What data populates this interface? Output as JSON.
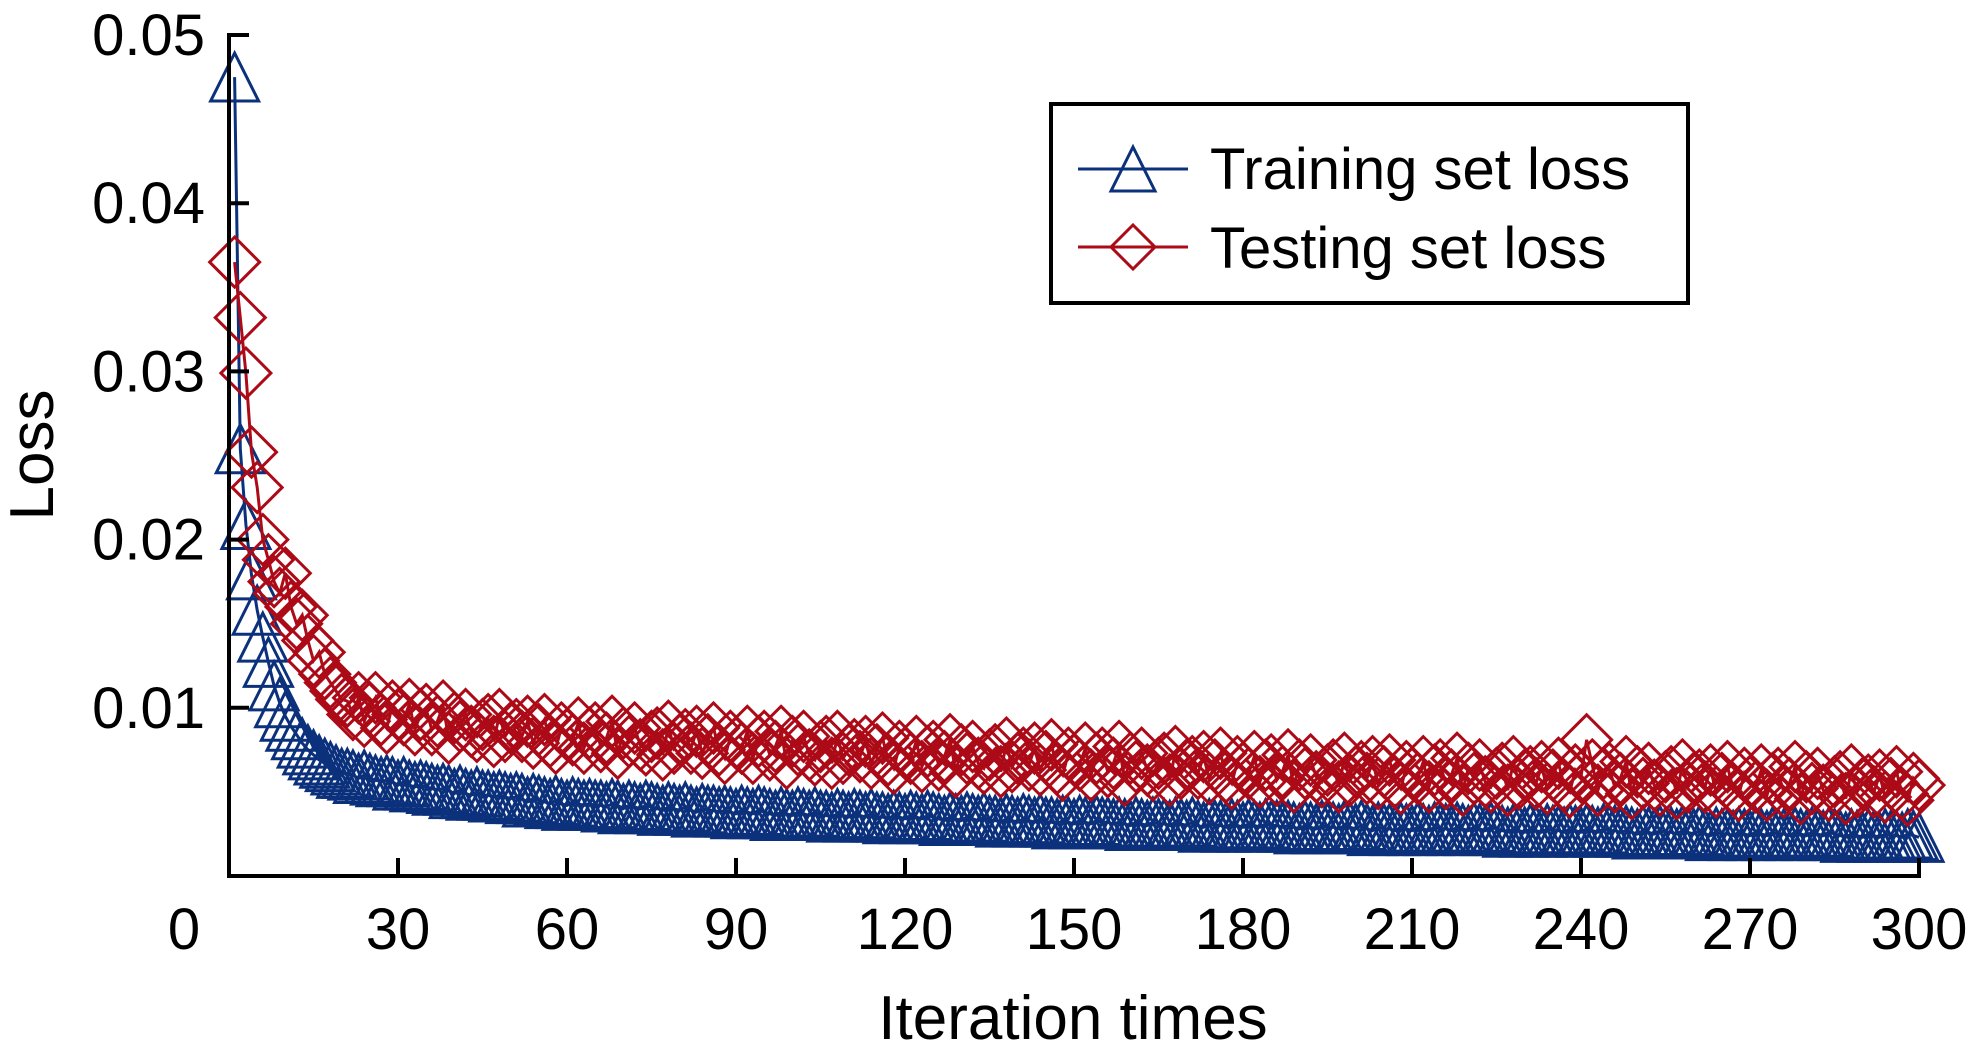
{
  "chart_data": {
    "type": "line",
    "title": "",
    "xlabel": "Iteration times",
    "ylabel": "Loss",
    "xlim": [
      0,
      300
    ],
    "ylim": [
      0,
      0.05
    ],
    "grid": false,
    "legend_position": "top-right",
    "x_ticks": [
      0,
      30,
      60,
      90,
      120,
      150,
      180,
      210,
      240,
      270,
      300
    ],
    "x_tick_labels": [
      "0",
      "30",
      "60",
      "90",
      "120",
      "150",
      "180",
      "210",
      "240",
      "270",
      "300"
    ],
    "y_ticks": [
      0.01,
      0.02,
      0.03,
      0.04,
      0.05
    ],
    "y_tick_labels": [
      "0.01",
      "0.02",
      "0.03",
      "0.04",
      "0.05"
    ],
    "x_start": 1,
    "x_step": 1,
    "series": [
      {
        "name": "Training set loss",
        "color": "#0c317c",
        "marker": "triangle",
        "values": [
          0.0475,
          0.0254,
          0.0209,
          0.0179,
          0.0158,
          0.0142,
          0.0127,
          0.0113,
          0.0103,
          0.0095,
          0.0089,
          0.0084,
          0.0079,
          0.0075,
          0.0072,
          0.0069,
          0.0067,
          0.0065,
          0.0063,
          0.0061,
          0.0061,
          0.006,
          0.0058,
          0.006,
          0.0058,
          0.0057,
          0.0056,
          0.0057,
          0.0056,
          0.0054,
          0.0056,
          0.0054,
          0.0053,
          0.0054,
          0.0053,
          0.0052,
          0.0051,
          0.0052,
          0.0051,
          0.0049,
          0.0051,
          0.0049,
          0.0048,
          0.005,
          0.0048,
          0.0048,
          0.0047,
          0.0048,
          0.0047,
          0.0046,
          0.0047,
          0.0046,
          0.0044,
          0.0046,
          0.0045,
          0.0044,
          0.0043,
          0.0045,
          0.0043,
          0.0042,
          0.0044,
          0.0043,
          0.0042,
          0.0043,
          0.0042,
          0.0042,
          0.0041,
          0.0043,
          0.0042,
          0.004,
          0.0042,
          0.0041,
          0.004,
          0.0042,
          0.0041,
          0.004,
          0.0039,
          0.0041,
          0.004,
          0.0039,
          0.0041,
          0.0039,
          0.0038,
          0.004,
          0.0039,
          0.0039,
          0.0038,
          0.0039,
          0.0038,
          0.0037,
          0.0039,
          0.0038,
          0.0037,
          0.0039,
          0.0038,
          0.0037,
          0.0036,
          0.0038,
          0.0037,
          0.0036,
          0.0038,
          0.0037,
          0.0036,
          0.0038,
          0.0036,
          0.0036,
          0.0035,
          0.0037,
          0.0036,
          0.0035,
          0.0037,
          0.0036,
          0.0035,
          0.0037,
          0.0035,
          0.0035,
          0.0034,
          0.0036,
          0.0035,
          0.0034,
          0.0036,
          0.0035,
          0.0034,
          0.0036,
          0.0035,
          0.0034,
          0.0033,
          0.0035,
          0.0034,
          0.0033,
          0.0035,
          0.0034,
          0.0033,
          0.0035,
          0.0033,
          0.0033,
          0.0032,
          0.0034,
          0.0033,
          0.0032,
          0.0034,
          0.0033,
          0.0032,
          0.0034,
          0.0032,
          0.0032,
          0.0031,
          0.0033,
          0.0032,
          0.0031,
          0.0033,
          0.0032,
          0.0031,
          0.0033,
          0.0032,
          0.0032,
          0.0031,
          0.0032,
          0.0031,
          0.003,
          0.0032,
          0.0031,
          0.003,
          0.0032,
          0.0031,
          0.0031,
          0.003,
          0.0032,
          0.0031,
          0.003,
          0.0032,
          0.003,
          0.0029,
          0.0031,
          0.003,
          0.003,
          0.0029,
          0.0031,
          0.003,
          0.0029,
          0.0031,
          0.003,
          0.0029,
          0.0031,
          0.003,
          0.003,
          0.0029,
          0.003,
          0.0029,
          0.0028,
          0.003,
          0.0029,
          0.0028,
          0.003,
          0.0029,
          0.0029,
          0.0028,
          0.003,
          0.0029,
          0.0028,
          0.003,
          0.0028,
          0.0027,
          0.0029,
          0.0028,
          0.0028,
          0.0027,
          0.0029,
          0.0028,
          0.0027,
          0.0029,
          0.0028,
          0.0027,
          0.0029,
          0.0028,
          0.0028,
          0.0027,
          0.0029,
          0.0028,
          0.0027,
          0.0029,
          0.0028,
          0.0027,
          0.0029,
          0.0028,
          0.0027,
          0.0026,
          0.0028,
          0.0027,
          0.0026,
          0.0028,
          0.0027,
          0.0026,
          0.0028,
          0.0027,
          0.0027,
          0.0026,
          0.0028,
          0.0027,
          0.0026,
          0.0028,
          0.0027,
          0.0026,
          0.0028,
          0.0027,
          0.0027,
          0.0026,
          0.0027,
          0.0026,
          0.0025,
          0.0027,
          0.0026,
          0.0025,
          0.0027,
          0.0026,
          0.0026,
          0.0025,
          0.0027,
          0.0026,
          0.0025,
          0.0027,
          0.0025,
          0.0024,
          0.0026,
          0.0025,
          0.0025,
          0.0024,
          0.0026,
          0.0025,
          0.0024,
          0.0026,
          0.0025,
          0.0024,
          0.0026,
          0.0025,
          0.0025,
          0.0024,
          0.0026,
          0.0025,
          0.0024,
          0.0026,
          0.0025,
          0.0024,
          0.0026,
          0.0025,
          0.0024,
          0.0023,
          0.0025,
          0.0024,
          0.0023,
          0.0025,
          0.0024,
          0.0023,
          0.0025,
          0.0024,
          0.0024,
          0.0023,
          0.0025,
          0.0024,
          0.0023
        ]
      },
      {
        "name": "Testing set loss",
        "color": "#ad0a18",
        "marker": "diamond",
        "values": [
          0.0365,
          0.0332,
          0.0299,
          0.0252,
          0.0231,
          0.02,
          0.0188,
          0.0175,
          0.0168,
          0.018,
          0.016,
          0.015,
          0.0155,
          0.014,
          0.0128,
          0.0133,
          0.012,
          0.0115,
          0.011,
          0.0105,
          0.0104,
          0.0096,
          0.0106,
          0.0092,
          0.01,
          0.0106,
          0.0093,
          0.0088,
          0.0101,
          0.0096,
          0.0093,
          0.0102,
          0.0087,
          0.0096,
          0.0099,
          0.0087,
          0.0092,
          0.0101,
          0.0082,
          0.0094,
          0.0089,
          0.0096,
          0.0086,
          0.0083,
          0.009,
          0.0093,
          0.008,
          0.0096,
          0.0083,
          0.0088,
          0.009,
          0.0083,
          0.0092,
          0.0079,
          0.0087,
          0.0093,
          0.008,
          0.0076,
          0.0088,
          0.0084,
          0.0081,
          0.0091,
          0.0076,
          0.0085,
          0.0088,
          0.0077,
          0.0082,
          0.0092,
          0.0073,
          0.0085,
          0.008,
          0.0088,
          0.0078,
          0.0075,
          0.0083,
          0.0085,
          0.0072,
          0.0089,
          0.0076,
          0.0081,
          0.0084,
          0.0076,
          0.0086,
          0.0073,
          0.0081,
          0.0088,
          0.0075,
          0.007,
          0.0083,
          0.0079,
          0.0076,
          0.0086,
          0.007,
          0.008,
          0.0083,
          0.0072,
          0.0077,
          0.0086,
          0.0067,
          0.008,
          0.0075,
          0.0083,
          0.0072,
          0.0069,
          0.0077,
          0.008,
          0.0067,
          0.0083,
          0.007,
          0.0075,
          0.0078,
          0.0071,
          0.008,
          0.0067,
          0.0075,
          0.0082,
          0.0069,
          0.0064,
          0.0077,
          0.0073,
          0.007,
          0.008,
          0.0065,
          0.0074,
          0.0077,
          0.0066,
          0.0071,
          0.0081,
          0.0062,
          0.0075,
          0.007,
          0.0077,
          0.0067,
          0.0064,
          0.0072,
          0.0075,
          0.0062,
          0.0079,
          0.0065,
          0.007,
          0.0073,
          0.0066,
          0.0076,
          0.0063,
          0.0071,
          0.0078,
          0.0064,
          0.006,
          0.0073,
          0.0069,
          0.0066,
          0.0076,
          0.006,
          0.007,
          0.0073,
          0.0062,
          0.0067,
          0.0077,
          0.0057,
          0.007,
          0.0065,
          0.0073,
          0.0063,
          0.006,
          0.0067,
          0.007,
          0.0057,
          0.0074,
          0.0061,
          0.0066,
          0.0068,
          0.0061,
          0.0071,
          0.0058,
          0.0066,
          0.0073,
          0.0059,
          0.0055,
          0.0068,
          0.0064,
          0.0061,
          0.0071,
          0.0056,
          0.0066,
          0.0069,
          0.0057,
          0.0062,
          0.0072,
          0.0053,
          0.0066,
          0.0061,
          0.0069,
          0.0059,
          0.0056,
          0.0063,
          0.0066,
          0.0053,
          0.007,
          0.0057,
          0.0062,
          0.0065,
          0.0058,
          0.0068,
          0.0055,
          0.0062,
          0.0069,
          0.0056,
          0.0052,
          0.0065,
          0.0061,
          0.0058,
          0.0068,
          0.0053,
          0.0063,
          0.0066,
          0.0055,
          0.006,
          0.007,
          0.0051,
          0.0064,
          0.0058,
          0.0066,
          0.0056,
          0.0053,
          0.0061,
          0.0064,
          0.0051,
          0.0068,
          0.0055,
          0.006,
          0.0062,
          0.0055,
          0.0065,
          0.0052,
          0.006,
          0.0067,
          0.0054,
          0.005,
          0.0063,
          0.0059,
          0.0081,
          0.0066,
          0.0051,
          0.0061,
          0.0064,
          0.0053,
          0.0058,
          0.0068,
          0.0049,
          0.0062,
          0.0055,
          0.0064,
          0.0054,
          0.0051,
          0.0059,
          0.0062,
          0.0049,
          0.0066,
          0.0053,
          0.0058,
          0.006,
          0.0053,
          0.0063,
          0.005,
          0.0058,
          0.0065,
          0.0052,
          0.0048,
          0.0061,
          0.0056,
          0.0053,
          0.0063,
          0.0048,
          0.0058,
          0.0061,
          0.005,
          0.0055,
          0.0065,
          0.0046,
          0.0059,
          0.0052,
          0.0061,
          0.0051,
          0.0048,
          0.0056,
          0.0059,
          0.0046,
          0.0063,
          0.005,
          0.0055,
          0.0057,
          0.005,
          0.006,
          0.0047,
          0.0055,
          0.0062,
          0.0049,
          0.0045,
          0.0058,
          0.0054
        ]
      }
    ]
  }
}
